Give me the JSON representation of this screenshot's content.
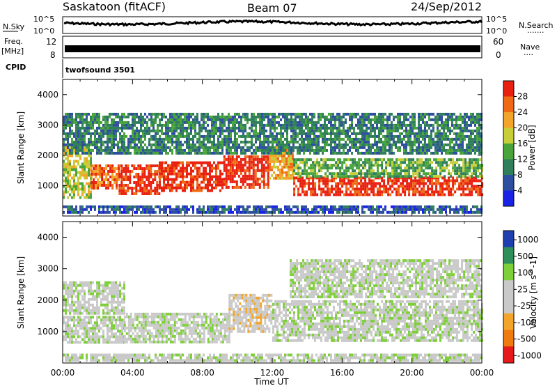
{
  "header": {
    "left": "Saskatoon (fitACF)",
    "center": "Beam 07",
    "right": "24/Sep/2012"
  },
  "strips": {
    "nsky_label": "N.Sky",
    "nsky_ticks": [
      "10^5",
      "10^0"
    ],
    "nsearch_label": "N.Search",
    "nsearch_marker": "·······",
    "freq_label_1": "Freq.",
    "freq_label_2": "[MHz]",
    "freq_ticks": [
      "12",
      "8"
    ],
    "nave_label": "Nave",
    "nave_marker": "····",
    "nave_ticks": [
      "60",
      "0"
    ],
    "cpid_label": "CPID",
    "cpid_value": "twofsound 3501"
  },
  "colors": {
    "power": [
      "#1a22e6",
      "#2e4ea0",
      "#2f7f5a",
      "#49a43b",
      "#c8cd3a",
      "#f3a42a",
      "#ef6a14",
      "#e82010"
    ],
    "velocity": [
      "#e61a1a",
      "#ef7a10",
      "#f3a42a",
      "#c9c9c9",
      "#c9c9c9",
      "#7fcf3a",
      "#2f8f5a",
      "#1f3fb0"
    ]
  },
  "chart_data": [
    {
      "type": "heatmap",
      "title": "",
      "xlabel": "",
      "ylabel": "Slant Range [km]",
      "ylim": [
        0,
        4500
      ],
      "xlim_hours": [
        0,
        24
      ],
      "yticks": [
        "1000",
        "2000",
        "3000",
        "4000"
      ],
      "colorbar": {
        "label": "Power [dB]",
        "ticks": [
          "4",
          "8",
          "12",
          "16",
          "20",
          "24",
          "28"
        ],
        "range": [
          0,
          32
        ]
      },
      "bands": [
        {
          "x": [
            0,
            1.6
          ],
          "y": [
            650,
            2400
          ],
          "value": 18
        },
        {
          "x": [
            1.6,
            3.2
          ],
          "y": [
            950,
            1700
          ],
          "value": 24
        },
        {
          "x": [
            3.2,
            5.5
          ],
          "y": [
            750,
            1700
          ],
          "value": 30
        },
        {
          "x": [
            5.5,
            9.2
          ],
          "y": [
            850,
            1800
          ],
          "value": 30
        },
        {
          "x": [
            9.2,
            11.8
          ],
          "y": [
            950,
            2000
          ],
          "value": 30
        },
        {
          "x": [
            11.8,
            13.2
          ],
          "y": [
            1200,
            2300
          ],
          "value": 22
        },
        {
          "x": [
            13.2,
            24
          ],
          "y": [
            700,
            1300
          ],
          "value": 28
        },
        {
          "x": [
            13.2,
            24
          ],
          "y": [
            1300,
            1900
          ],
          "value": 14
        },
        {
          "x": [
            0,
            24
          ],
          "y": [
            2100,
            3400
          ],
          "value": 8
        },
        {
          "x": [
            0,
            24
          ],
          "y": [
            100,
            350
          ],
          "value": 6
        }
      ]
    },
    {
      "type": "heatmap",
      "title": "",
      "xlabel": "Time UT",
      "ylabel": "Slant Range [km]",
      "ylim": [
        0,
        4500
      ],
      "xlim_hours": [
        0,
        24
      ],
      "xticks": [
        "00:00",
        "04:00",
        "08:00",
        "12:00",
        "16:00",
        "20:00",
        "00:00"
      ],
      "yticks": [
        "1000",
        "2000",
        "3000",
        "4000"
      ],
      "colorbar": {
        "label": "Velocity [m s^-1]",
        "ticks": [
          "1000",
          "500",
          "100",
          "25",
          "-25",
          "-100",
          "-500",
          "-1000"
        ],
        "range": [
          -1000,
          1000
        ]
      },
      "bands": [
        {
          "x": [
            0,
            3.5
          ],
          "y": [
            700,
            1500
          ],
          "value": 0
        },
        {
          "x": [
            0,
            3.5
          ],
          "y": [
            1600,
            2600
          ],
          "value": 100
        },
        {
          "x": [
            3.5,
            9.5
          ],
          "y": [
            700,
            1600
          ],
          "value": 100
        },
        {
          "x": [
            9.5,
            12
          ],
          "y": [
            1000,
            2200
          ],
          "value": -100
        },
        {
          "x": [
            12,
            24
          ],
          "y": [
            700,
            2000
          ],
          "value": 0
        },
        {
          "x": [
            13,
            24
          ],
          "y": [
            2100,
            3300
          ],
          "value": 0
        },
        {
          "x": [
            0,
            24
          ],
          "y": [
            100,
            300
          ],
          "value": 100
        }
      ]
    }
  ]
}
